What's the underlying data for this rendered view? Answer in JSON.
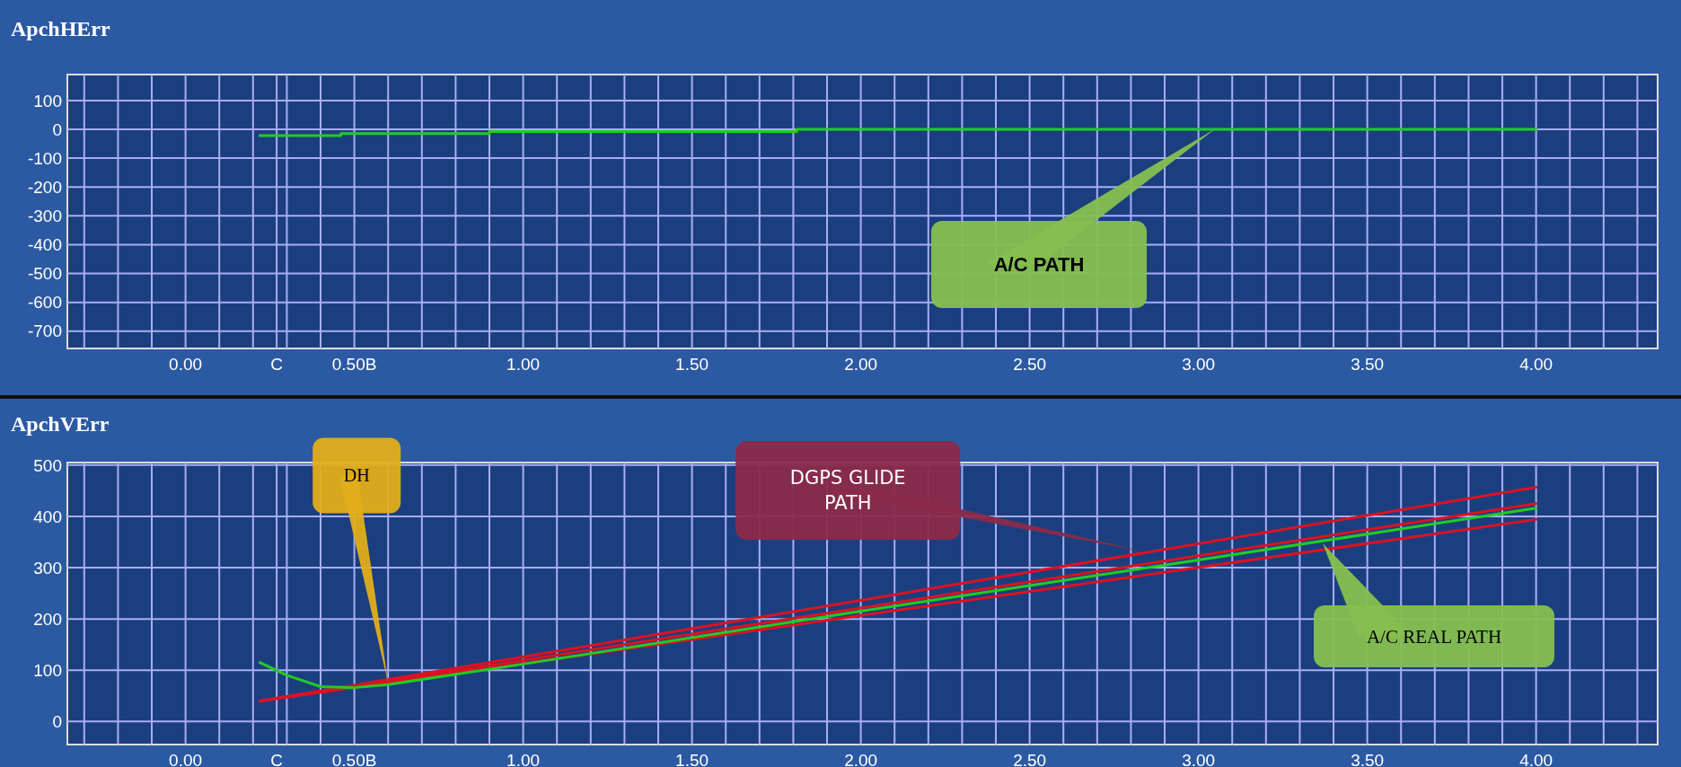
{
  "chart_data": [
    {
      "type": "step",
      "title": "ApchHErr",
      "xlim": [
        -0.35,
        4.36
      ],
      "ylim": [
        -760,
        190
      ],
      "xticks": [
        {
          "value": -0.3,
          "label": null
        },
        {
          "value": -0.2,
          "label": null
        },
        {
          "value": -0.1,
          "label": null
        },
        {
          "value": 0,
          "label": "0.00"
        },
        {
          "value": 0.1,
          "label": null
        },
        {
          "value": 0.2,
          "label": null
        },
        {
          "value": 0.27,
          "label": "C"
        },
        {
          "value": 0.3,
          "label": null
        },
        {
          "value": 0.4,
          "label": null
        },
        {
          "value": 0.5,
          "label": "0.50B"
        },
        {
          "value": 0.6,
          "label": null
        },
        {
          "value": 0.7,
          "label": null
        },
        {
          "value": 0.8,
          "label": null
        },
        {
          "value": 0.9,
          "label": null
        },
        {
          "value": 1,
          "label": "1.00"
        },
        {
          "value": 1.1,
          "label": null
        },
        {
          "value": 1.2,
          "label": null
        },
        {
          "value": 1.3,
          "label": null
        },
        {
          "value": 1.4,
          "label": null
        },
        {
          "value": 1.5,
          "label": "1.50"
        },
        {
          "value": 1.6,
          "label": null
        },
        {
          "value": 1.7,
          "label": null
        },
        {
          "value": 1.8,
          "label": null
        },
        {
          "value": 1.9,
          "label": null
        },
        {
          "value": 2,
          "label": "2.00"
        },
        {
          "value": 2.1,
          "label": null
        },
        {
          "value": 2.2,
          "label": null
        },
        {
          "value": 2.3,
          "label": null
        },
        {
          "value": 2.4,
          "label": null
        },
        {
          "value": 2.5,
          "label": "2.50"
        },
        {
          "value": 2.6,
          "label": null
        },
        {
          "value": 2.7,
          "label": null
        },
        {
          "value": 2.8,
          "label": null
        },
        {
          "value": 2.9,
          "label": null
        },
        {
          "value": 3,
          "label": "3.00"
        },
        {
          "value": 3.1,
          "label": null
        },
        {
          "value": 3.2,
          "label": null
        },
        {
          "value": 3.3,
          "label": null
        },
        {
          "value": 3.4,
          "label": null
        },
        {
          "value": 3.5,
          "label": "3.50"
        },
        {
          "value": 3.6,
          "label": null
        },
        {
          "value": 3.7,
          "label": null
        },
        {
          "value": 3.8,
          "label": null
        },
        {
          "value": 3.9,
          "label": null
        },
        {
          "value": 4,
          "label": "4.00"
        },
        {
          "value": 4.1,
          "label": null
        },
        {
          "value": 4.2,
          "label": null
        },
        {
          "value": 4.3,
          "label": null
        }
      ],
      "yticks": [
        100,
        0,
        -100,
        -200,
        -300,
        -400,
        -500,
        -600,
        -700
      ],
      "grid": true,
      "series": [
        {
          "color": "#22cc22",
          "x": [
            0.22,
            0.46,
            0.9,
            1.81,
            4.0
          ],
          "values": [
            -22,
            -15,
            -8,
            0,
            0
          ]
        }
      ],
      "annotations": [
        "A/C  PATH"
      ]
    },
    {
      "type": "line",
      "title": "ApchVErr",
      "xlim": [
        -0.35,
        4.36
      ],
      "ylim": [
        -45,
        505
      ],
      "xticks": [
        {
          "value": -0.3,
          "label": null
        },
        {
          "value": -0.2,
          "label": null
        },
        {
          "value": -0.1,
          "label": null
        },
        {
          "value": 0,
          "label": "0.00"
        },
        {
          "value": 0.1,
          "label": null
        },
        {
          "value": 0.2,
          "label": null
        },
        {
          "value": 0.27,
          "label": "C"
        },
        {
          "value": 0.3,
          "label": null
        },
        {
          "value": 0.4,
          "label": null
        },
        {
          "value": 0.5,
          "label": "0.50B"
        },
        {
          "value": 0.6,
          "label": null
        },
        {
          "value": 0.7,
          "label": null
        },
        {
          "value": 0.8,
          "label": null
        },
        {
          "value": 0.9,
          "label": null
        },
        {
          "value": 1,
          "label": "1.00"
        },
        {
          "value": 1.1,
          "label": null
        },
        {
          "value": 1.2,
          "label": null
        },
        {
          "value": 1.3,
          "label": null
        },
        {
          "value": 1.4,
          "label": null
        },
        {
          "value": 1.5,
          "label": "1.50"
        },
        {
          "value": 1.6,
          "label": null
        },
        {
          "value": 1.7,
          "label": null
        },
        {
          "value": 1.8,
          "label": null
        },
        {
          "value": 1.9,
          "label": null
        },
        {
          "value": 2,
          "label": "2.00"
        },
        {
          "value": 2.1,
          "label": null
        },
        {
          "value": 2.2,
          "label": null
        },
        {
          "value": 2.3,
          "label": null
        },
        {
          "value": 2.4,
          "label": null
        },
        {
          "value": 2.5,
          "label": "2.50"
        },
        {
          "value": 2.6,
          "label": null
        },
        {
          "value": 2.7,
          "label": null
        },
        {
          "value": 2.8,
          "label": null
        },
        {
          "value": 2.9,
          "label": null
        },
        {
          "value": 3,
          "label": "3.00"
        },
        {
          "value": 3.1,
          "label": null
        },
        {
          "value": 3.2,
          "label": null
        },
        {
          "value": 3.3,
          "label": null
        },
        {
          "value": 3.4,
          "label": null
        },
        {
          "value": 3.5,
          "label": "3.50"
        },
        {
          "value": 3.6,
          "label": null
        },
        {
          "value": 3.7,
          "label": null
        },
        {
          "value": 3.8,
          "label": null
        },
        {
          "value": 3.9,
          "label": null
        },
        {
          "value": 4,
          "label": "4.00"
        },
        {
          "value": 4.1,
          "label": null
        },
        {
          "value": 4.2,
          "label": null
        },
        {
          "value": 4.3,
          "label": null
        }
      ],
      "yticks": [
        500,
        400,
        300,
        200,
        100,
        0
      ],
      "grid": true,
      "series": [
        {
          "color": "#dd1122",
          "x": [
            0.22,
            4.0
          ],
          "values": [
            40,
            457
          ]
        },
        {
          "color": "#dd1122",
          "x": [
            0.22,
            4.0
          ],
          "values": [
            40,
            425
          ]
        },
        {
          "color": "#dd1122",
          "x": [
            0.22,
            4.0
          ],
          "values": [
            40,
            394
          ]
        },
        {
          "color": "#22cc22",
          "x": [
            0.22,
            0.3,
            0.4,
            0.5,
            0.6,
            1.0,
            2.0,
            3.0,
            4.0
          ],
          "values": [
            115,
            90,
            68,
            66,
            72,
            112,
            215,
            315,
            416
          ]
        }
      ],
      "annotations": [
        {
          "text": "DH",
          "x": 0.6,
          "y": 75
        },
        {
          "text": "DGPS GLIDE PATH",
          "x": 2.85,
          "y": 330
        },
        "A/C REAL PATH"
      ]
    }
  ]
}
